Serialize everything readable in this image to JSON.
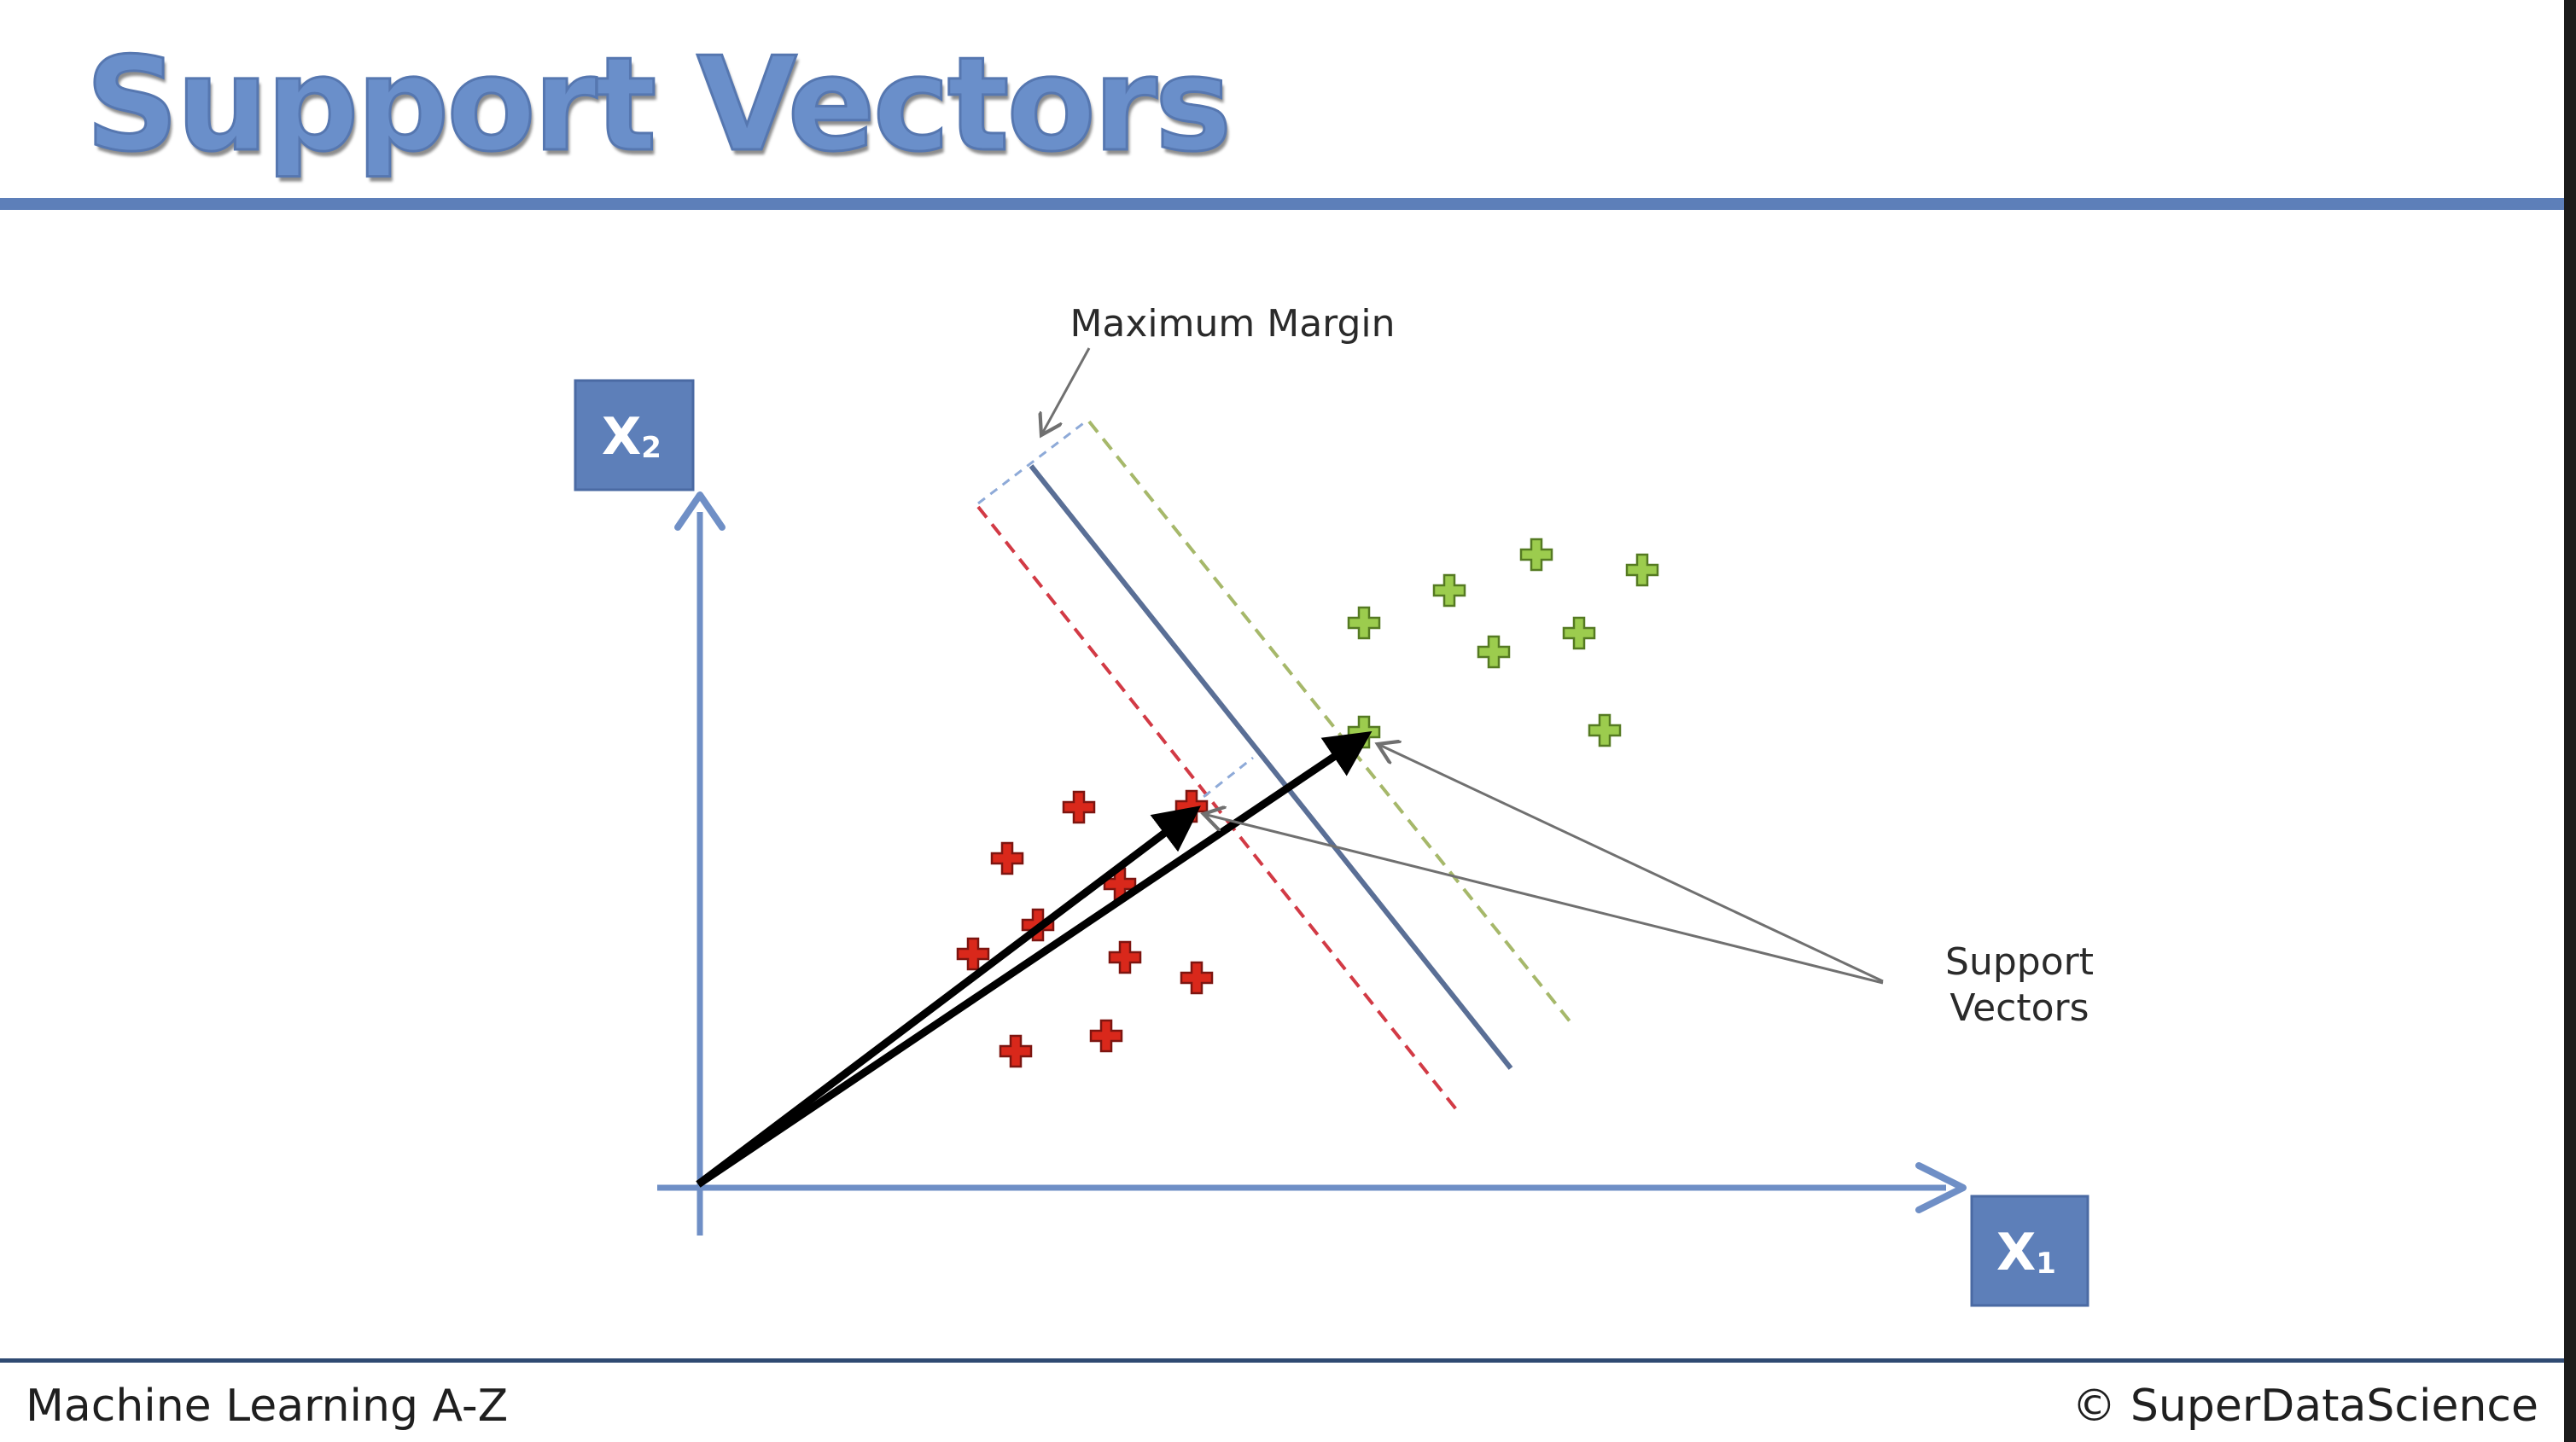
{
  "slide": {
    "title": "Support Vectors",
    "footer_left": "Machine Learning A-Z",
    "footer_right": "© SuperDataScience"
  },
  "diagram": {
    "x_axis_label": "X",
    "x_axis_subscript": "1",
    "y_axis_label": "X",
    "y_axis_subscript": "2",
    "margin_annotation": "Maximum Margin",
    "support_vectors_annotation_line1": "Support",
    "support_vectors_annotation_line2": "Vectors"
  },
  "colors": {
    "title": "#6a8fca",
    "accent_blue": "#5d7fb9",
    "axis_blue": "#6f8fc6",
    "hyperplane": "#5a6f96",
    "class_red": "#d9281b",
    "class_green": "#9ccc4e",
    "margin_red": "#d23a45",
    "margin_green": "#a6b86a",
    "vector_black": "#000000"
  },
  "classes": [
    {
      "name": "red",
      "marker": "plus-icon"
    },
    {
      "name": "green",
      "marker": "plus-icon"
    }
  ]
}
